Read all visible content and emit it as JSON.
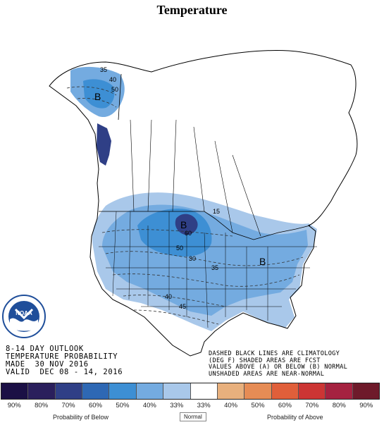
{
  "title": "Temperature",
  "outlook": {
    "line1": "8-14 DAY OUTLOOK",
    "line2": "TEMPERATURE PROBABILITY",
    "line3": "MADE  30 NOV 2016",
    "line4": "VALID  DEC 08 - 14, 2016"
  },
  "notes": {
    "line1": "DASHED BLACK LINES ARE CLIMATOLOGY",
    "line2": "(DEG F) SHADED AREAS ARE FCST",
    "line3": "VALUES ABOVE (A) OR BELOW (B) NORMAL",
    "line4": "UNSHADED AREAS ARE NEAR-NORMAL"
  },
  "map_labels": {
    "b_alaska": "B",
    "b_plains": "B",
    "b_east": "B",
    "iso_35_ak": "35",
    "iso_40_ak": "40",
    "iso_50_ak": "50",
    "iso_15": "15",
    "iso_60": "60",
    "iso_50": "50",
    "iso_30": "30",
    "iso_35": "35",
    "iso_40": "40",
    "iso_45": "45"
  },
  "logo_text": "NOAA",
  "legend": {
    "ticks": [
      "90%",
      "80%",
      "70%",
      "60%",
      "50%",
      "40%",
      "33%",
      "33%",
      "40%",
      "50%",
      "60%",
      "70%",
      "80%",
      "90%"
    ],
    "colors": [
      "#1b1045",
      "#2a1f5c",
      "#2f3f86",
      "#2e68b4",
      "#3d8fd4",
      "#74abe0",
      "#a9c8ea",
      "#ffffff",
      "#e8b07d",
      "#e68c55",
      "#e05f3a",
      "#cc3534",
      "#a52240",
      "#6e1a2a"
    ],
    "below_label": "Probability of Below",
    "normal_label": "Normal",
    "above_label": "Probability of Above"
  },
  "colors": {
    "light_blue": "#a9c8ea",
    "medium_blue": "#74abe0",
    "blue": "#3d8fd4",
    "dark_blue": "#2e68b4",
    "darker_blue": "#2f3f86"
  }
}
